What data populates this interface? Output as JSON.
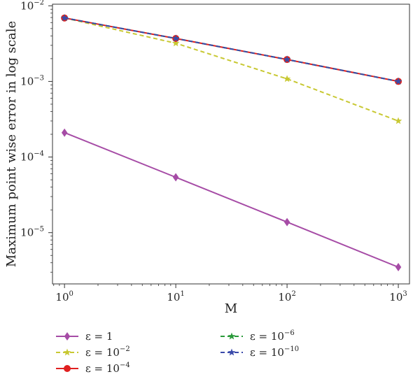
{
  "chart_data": {
    "type": "line",
    "title": "",
    "xlabel": "M",
    "ylabel": "Maximum point wise error in log scale",
    "x_scale": "log",
    "y_scale": "log",
    "xlim": [
      0.78,
      1260
    ],
    "ylim": [
      2.1e-06,
      0.0105
    ],
    "x_ticks": [
      {
        "value": 1,
        "base": "10",
        "exp": "0"
      },
      {
        "value": 10,
        "base": "10",
        "exp": "1"
      },
      {
        "value": 100,
        "base": "10",
        "exp": "2"
      },
      {
        "value": 1000,
        "base": "10",
        "exp": "3"
      }
    ],
    "y_ticks": [
      {
        "value": 1e-05,
        "base": "10",
        "exp": "−5"
      },
      {
        "value": 0.0001,
        "base": "10",
        "exp": "−4"
      },
      {
        "value": 0.001,
        "base": "10",
        "exp": "−3"
      },
      {
        "value": 0.01,
        "base": "10",
        "exp": "−2"
      }
    ],
    "grid": false,
    "legend_position": "bottom",
    "x": [
      1,
      10,
      100,
      1000
    ],
    "series": [
      {
        "name": "ε = 1",
        "label_base": "ε = 1",
        "label_exp": "",
        "values": [
          0.00021,
          5.4e-05,
          1.38e-05,
          3.5e-06
        ],
        "color": "#a64ca6",
        "marker": "diamond",
        "dash": "solid"
      },
      {
        "name": "ε = 10−2",
        "label_base": "ε = 10",
        "label_exp": "−2",
        "values": [
          0.0069,
          0.0032,
          0.00108,
          0.0003
        ],
        "color": "#c8c832",
        "marker": "star",
        "dash": "dashed"
      },
      {
        "name": "ε = 10−4",
        "label_base": "ε = 10",
        "label_exp": "−4",
        "values": [
          0.0069,
          0.0037,
          0.00195,
          0.001
        ],
        "color": "#e02020",
        "marker": "circle",
        "dash": "solid"
      },
      {
        "name": "ε = 10−6",
        "label_base": "ε = 10",
        "label_exp": "−6",
        "values": [
          0.0069,
          0.0037,
          0.00195,
          0.001
        ],
        "color": "#2a9a3a",
        "marker": "star",
        "dash": "dashed"
      },
      {
        "name": "ε = 10−10",
        "label_base": "ε = 10",
        "label_exp": "−10",
        "values": [
          0.0069,
          0.0037,
          0.00195,
          0.001
        ],
        "color": "#3a4aaa",
        "marker": "star",
        "dash": "dashed"
      }
    ]
  }
}
